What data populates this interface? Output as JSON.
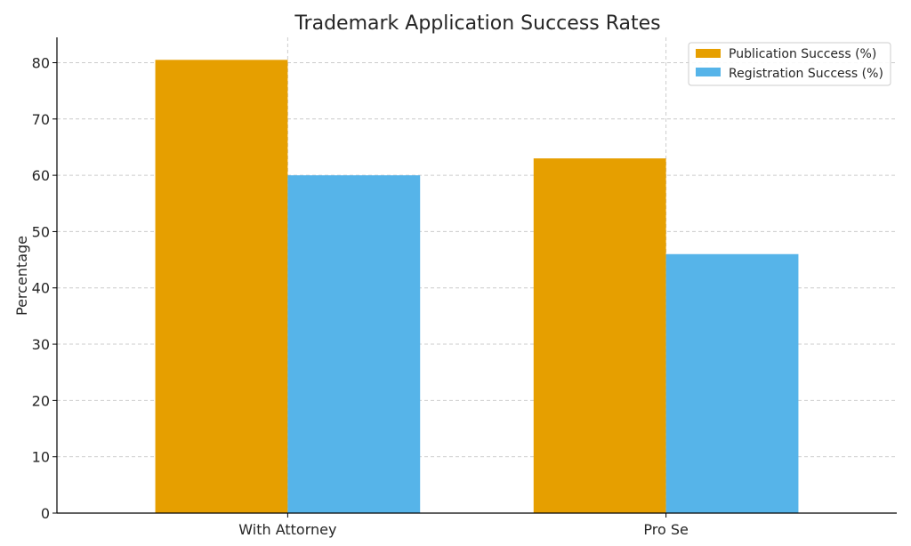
{
  "chart_data": {
    "type": "bar",
    "title": "Trademark Application Success Rates",
    "xlabel": "",
    "ylabel": "Percentage",
    "categories": [
      "With Attorney",
      "Pro Se"
    ],
    "series": [
      {
        "name": "Publication Success (%)",
        "values": [
          80.5,
          63
        ],
        "color": "#E69F00"
      },
      {
        "name": "Registration Success (%)",
        "values": [
          60,
          46
        ],
        "color": "#56B4E9"
      }
    ],
    "ylim": [
      0,
      84.5
    ],
    "yticks": [
      0,
      10,
      20,
      30,
      40,
      50,
      60,
      70,
      80
    ],
    "grid": true,
    "legend_position": "top-right"
  }
}
